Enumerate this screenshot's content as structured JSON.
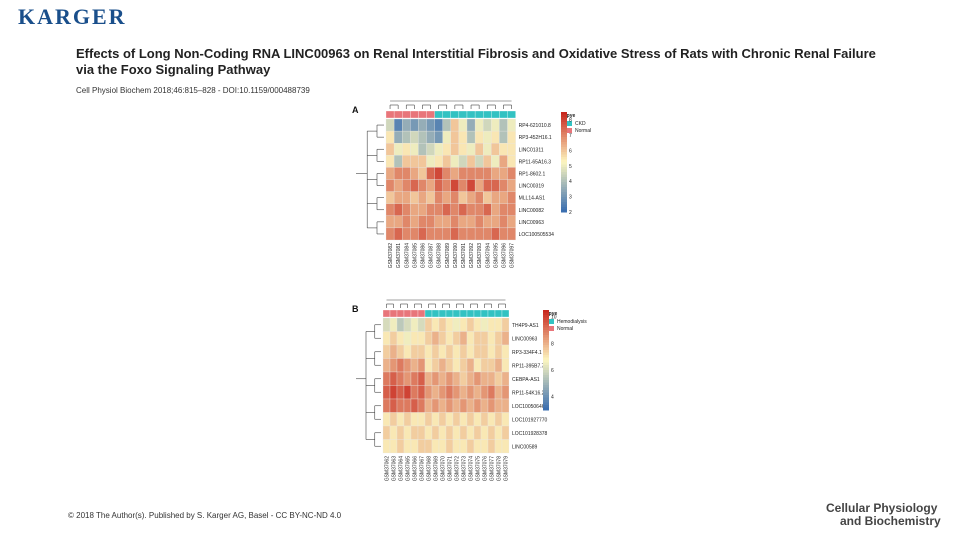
{
  "header": {
    "logo_text": "KARGER",
    "title": "Effects of Long Non-Coding RNA LINC00963 on Renal Interstitial Fibrosis and Oxidative Stress of Rats with Chronic Renal Failure via the Foxo Signaling Pathway",
    "citation": "Cell Physiol Biochem 2018;46:815–828 - DOI:10.1159/000488739"
  },
  "footer": {
    "copyright": "© 2018 The Author(s). Published by S. Karger AG, Basel - CC BY-NC-ND 4.0",
    "journal_line1": "Cellular Physiology",
    "journal_line2": "and Biochemistry"
  },
  "colors": {
    "low": "#3b6fb0",
    "mid": "#fdf6bf",
    "high": "#c8281f",
    "group_ckd": "#33c2c2",
    "group_normal": "#e8757a"
  },
  "chart_data": [
    {
      "type": "heatmap",
      "panel": "A",
      "legend_title": "tpye",
      "groups": [
        "CKD",
        "Normal"
      ],
      "scale_ticks": [
        "8",
        "7",
        "6",
        "5",
        "4",
        "3",
        "2"
      ],
      "scale_range": [
        2,
        8.5
      ],
      "column_groups": [
        "Normal",
        "Normal",
        "Normal",
        "Normal",
        "Normal",
        "Normal",
        "CKD",
        "CKD",
        "CKD",
        "CKD",
        "CKD",
        "CKD",
        "CKD",
        "CKD",
        "CKD",
        "CKD"
      ],
      "columns": [
        "GSM37082",
        "GSM37081",
        "GSM37084",
        "GSM37085",
        "GSM37086",
        "GSM37087",
        "GSM37088",
        "GSM37089",
        "GSM37090",
        "GSM37091",
        "GSM37092",
        "GSM37093",
        "GSM37094",
        "GSM37095",
        "GSM37096",
        "GSM37097"
      ],
      "rows": [
        "RP4-621010.8",
        "RP3-452H16.1",
        "LINC01311",
        "RP11-65A16.3",
        "RP1-8602.1",
        "LINC00319",
        "MLL14-AS1",
        "LINC00082",
        "LINC00963",
        "LOC100505534"
      ],
      "values": [
        [
          4.5,
          2.5,
          3.5,
          3,
          3.5,
          3,
          2.5,
          4,
          6,
          5,
          3.5,
          5,
          4.5,
          5,
          4,
          5
        ],
        [
          5.5,
          3.5,
          4,
          4.5,
          4,
          3.5,
          3,
          5,
          6,
          5.5,
          4,
          5.5,
          5,
          5.5,
          4,
          5.5
        ],
        [
          6,
          5,
          5.5,
          5,
          4,
          4.5,
          5,
          5.5,
          6,
          5.5,
          5,
          6,
          5,
          6,
          5.5,
          5.5
        ],
        [
          5.5,
          4,
          6,
          6,
          6,
          5,
          5.5,
          6,
          5,
          4.5,
          6,
          4.5,
          6,
          5,
          6.5,
          5.5
        ],
        [
          6.5,
          7,
          7,
          6.5,
          6,
          7.5,
          8,
          7,
          6.5,
          7,
          7,
          7,
          7,
          6.5,
          6.5,
          7
        ],
        [
          7,
          6.5,
          7,
          7.5,
          7,
          6.5,
          7.5,
          7,
          8,
          7,
          8,
          6.5,
          7.5,
          7.5,
          7,
          6.5
        ],
        [
          6,
          6.5,
          6.5,
          6,
          6.5,
          6,
          7,
          6.5,
          7,
          6,
          6.5,
          7,
          6,
          6.5,
          6.5,
          7
        ],
        [
          7,
          7.5,
          7,
          6.5,
          6.5,
          7,
          7,
          7.5,
          7,
          7.5,
          7,
          7,
          7.5,
          6.5,
          7,
          7
        ],
        [
          6.5,
          6.5,
          7,
          6.5,
          7,
          7,
          6.5,
          6.5,
          7,
          6.5,
          6.5,
          7,
          6.5,
          6.5,
          7,
          6.5
        ],
        [
          7,
          7.5,
          7,
          7,
          7.5,
          7,
          7,
          7,
          7.5,
          7,
          7,
          7,
          7,
          7.5,
          7,
          7
        ]
      ]
    },
    {
      "type": "heatmap",
      "panel": "B",
      "legend_title": "tpye",
      "groups": [
        "Hemodialysis",
        "Normal"
      ],
      "scale_ticks": [
        "10",
        "8",
        "6",
        "4"
      ],
      "scale_range": [
        3,
        10.5
      ],
      "column_groups": [
        "Normal",
        "Normal",
        "Normal",
        "Normal",
        "Normal",
        "Normal",
        "Hemodialysis",
        "Hemodialysis",
        "Hemodialysis",
        "Hemodialysis",
        "Hemodialysis",
        "Hemodialysis",
        "Hemodialysis",
        "Hemodialysis",
        "Hemodialysis",
        "Hemodialysis",
        "Hemodialysis",
        "Hemodialysis"
      ],
      "columns": [
        "GSM37062",
        "GSM37063",
        "GSM37064",
        "GSM37065",
        "GSM37066",
        "GSM37067",
        "GSM37068",
        "GSM37069",
        "GSM37070",
        "GSM37071",
        "GSM37072",
        "GSM37073",
        "GSM37074",
        "GSM37075",
        "GSM37076",
        "GSM37077",
        "GSM37078",
        "GSM37079"
      ],
      "rows": [
        "TH4P9-AS1",
        "LINC00963",
        "RP3-334F4.1",
        "RP11-395B7.7",
        "CEBPA-AS1",
        "RP11-54K16.2",
        "LOC100506469",
        "LOC101927770",
        "LOC101928378",
        "LINC00589"
      ],
      "values": [
        [
          6,
          6.5,
          5.5,
          6,
          6.5,
          6,
          7.5,
          7,
          7.5,
          7,
          6.5,
          7,
          7.5,
          7,
          6.5,
          7,
          7,
          7.5
        ],
        [
          7,
          7.5,
          7,
          6.5,
          7,
          7,
          7.5,
          8,
          7.5,
          7,
          7.5,
          8,
          7,
          7.5,
          7.5,
          7,
          7.5,
          8
        ],
        [
          7.5,
          8,
          7.5,
          7,
          7.5,
          7.5,
          7,
          7.5,
          7,
          7.5,
          7,
          7.5,
          7,
          7.5,
          7.5,
          7,
          7.5,
          7
        ],
        [
          8,
          8.5,
          9,
          8.5,
          8,
          8.5,
          7,
          7.5,
          8,
          7.5,
          7,
          7.5,
          8,
          7,
          7.5,
          7.5,
          8,
          7
        ],
        [
          9,
          9.5,
          9,
          8.5,
          9,
          9.5,
          8,
          8.5,
          8,
          8.5,
          8,
          7.5,
          8,
          8.5,
          8,
          8,
          7.5,
          8
        ],
        [
          9.5,
          10,
          9.5,
          10,
          9,
          9.5,
          8.5,
          8,
          8.5,
          9,
          8.5,
          8,
          8.5,
          8,
          8.5,
          9,
          8,
          8.5
        ],
        [
          9,
          9.5,
          9,
          9,
          9.5,
          9,
          8,
          8.5,
          8,
          8.5,
          8,
          8.5,
          8,
          8.5,
          8,
          8.5,
          8,
          8
        ],
        [
          7,
          7.5,
          7,
          7.5,
          7,
          7,
          7.5,
          7,
          7.5,
          7,
          7.5,
          7,
          7.5,
          7,
          7.5,
          7,
          7.5,
          7
        ],
        [
          7.5,
          7,
          7.5,
          7,
          7.5,
          7.5,
          7,
          7.5,
          7,
          7.5,
          7,
          7.5,
          7,
          7.5,
          7,
          7.5,
          7,
          7.5
        ],
        [
          7,
          7,
          7.5,
          7,
          7,
          7.5,
          7.5,
          7,
          7,
          7.5,
          7,
          7,
          7.5,
          7,
          7,
          7.5,
          7,
          7
        ]
      ]
    }
  ]
}
